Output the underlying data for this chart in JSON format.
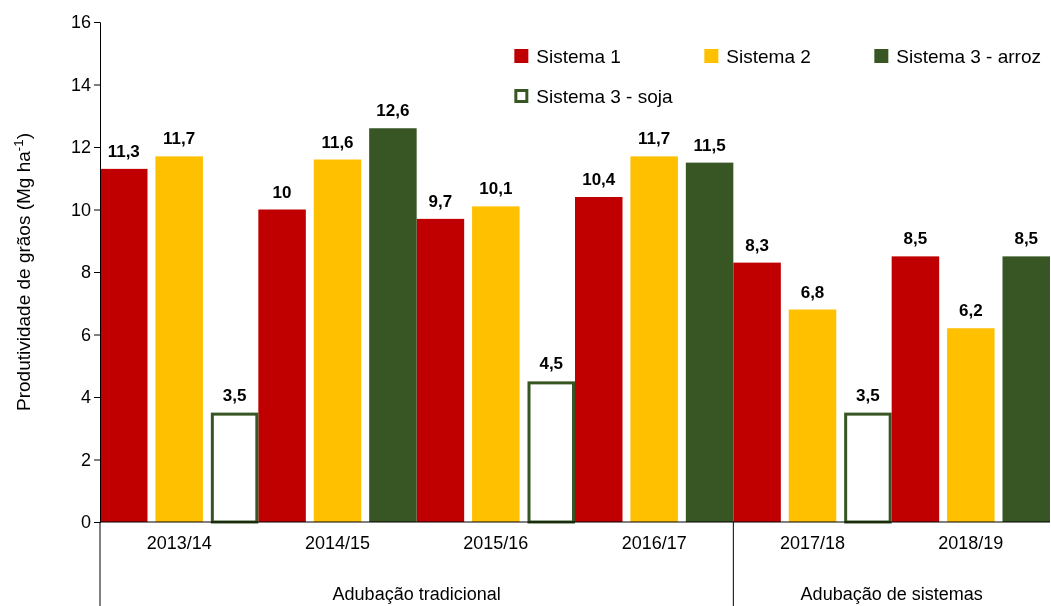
{
  "chart_data": {
    "type": "bar",
    "ylabel": "Produtividade de grãos (Mg ha$^{-1}$)",
    "categories": [
      "2013/14",
      "2014/15",
      "2015/16",
      "2016/17",
      "2017/18",
      "2018/19"
    ],
    "series": [
      {
        "name": "Sistema 1",
        "color": "#c00000",
        "values": [
          11.3,
          10,
          9.7,
          10.4,
          8.3,
          8.5
        ],
        "value_labels": [
          "11,3",
          "10",
          "9,7",
          "10,4",
          "8,3",
          "8,5"
        ]
      },
      {
        "name": "Sistema 2",
        "color": "#ffc000",
        "values": [
          11.7,
          11.6,
          10.1,
          11.7,
          6.8,
          6.2
        ],
        "value_labels": [
          "11,7",
          "11,6",
          "10,1",
          "11,7",
          "6,8",
          "6,2"
        ]
      },
      {
        "name": "Sistema 3 - arroz",
        "color": "#375623",
        "values": [
          null,
          12.6,
          null,
          11.5,
          null,
          8.5
        ],
        "value_labels": [
          null,
          "12,6",
          null,
          "11,5",
          null,
          "8,5"
        ]
      },
      {
        "name": "Sistema 3 - soja",
        "color": "#375623",
        "values": [
          3.5,
          null,
          4.5,
          null,
          3.5,
          null
        ],
        "value_labels": [
          "3,5",
          null,
          "4,5",
          null,
          "3,5",
          null
        ]
      }
    ],
    "ylim": [
      0,
      16
    ],
    "yticks": [
      0,
      2,
      4,
      6,
      8,
      10,
      12,
      14,
      16
    ],
    "grid": false,
    "legend": "top right",
    "annotations": [
      "Adubação tradicional",
      "Adubação de sistemas"
    ]
  }
}
